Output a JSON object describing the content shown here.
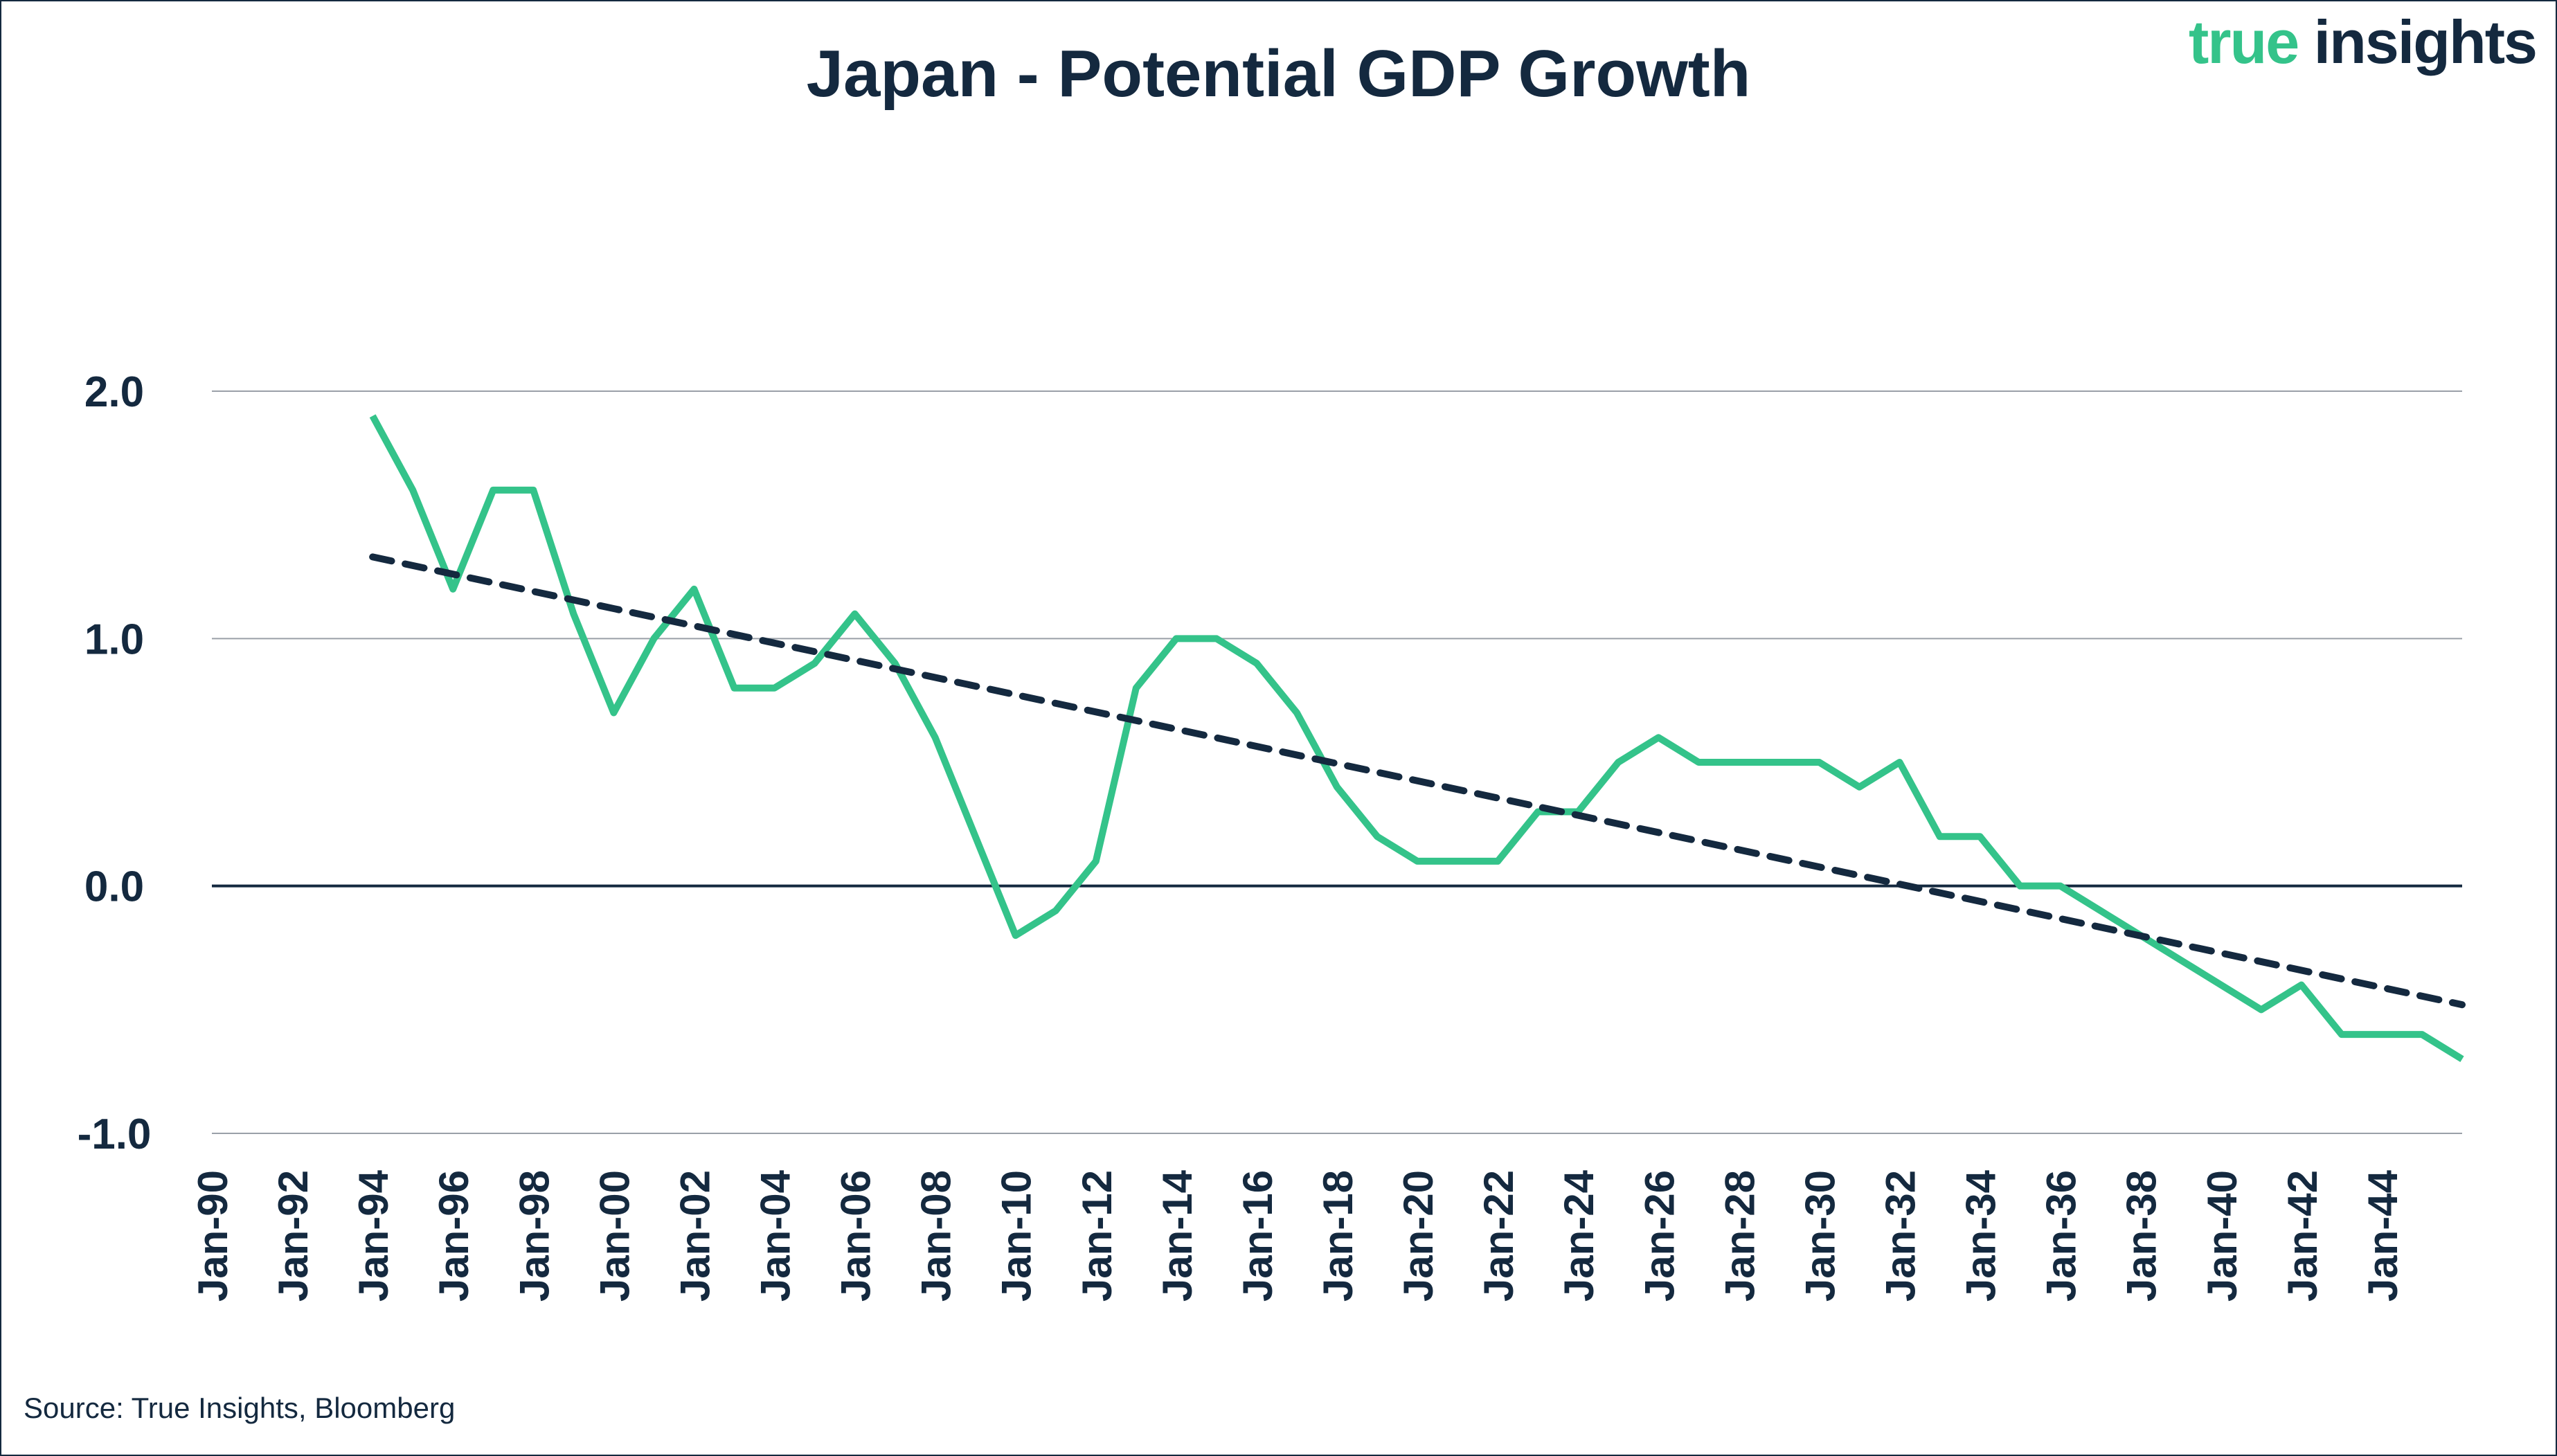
{
  "chart_data": {
    "type": "line",
    "title": "Japan - Potential GDP Growth",
    "xlabel": "",
    "ylabel": "",
    "ylim": [
      -1.0,
      2.0
    ],
    "yticks": [
      "2.0",
      "1.0",
      "0.0",
      "-1.0"
    ],
    "ytick_values": [
      2.0,
      1.0,
      0.0,
      -1.0
    ],
    "grid": true,
    "x_range_years": [
      1990,
      2046
    ],
    "xtick_labels": [
      "Jan-90",
      "Jan-92",
      "Jan-94",
      "Jan-96",
      "Jan-98",
      "Jan-00",
      "Jan-02",
      "Jan-04",
      "Jan-06",
      "Jan-08",
      "Jan-10",
      "Jan-12",
      "Jan-14",
      "Jan-16",
      "Jan-18",
      "Jan-20",
      "Jan-22",
      "Jan-24",
      "Jan-26",
      "Jan-28",
      "Jan-30",
      "Jan-32",
      "Jan-34",
      "Jan-36",
      "Jan-38",
      "Jan-40",
      "Jan-42",
      "Jan-44"
    ],
    "series": [
      {
        "name": "Potential GDP Growth",
        "color": "#34c38a",
        "x": [
          1994,
          1995,
          1996,
          1997,
          1998,
          1999,
          2000,
          2001,
          2002,
          2003,
          2004,
          2005,
          2006,
          2007,
          2008,
          2009,
          2010,
          2011,
          2012,
          2013,
          2014,
          2015,
          2016,
          2017,
          2018,
          2019,
          2020,
          2021,
          2022,
          2023,
          2024,
          2025,
          2026,
          2027,
          2028,
          2029,
          2030,
          2031,
          2032,
          2033,
          2034,
          2035,
          2036,
          2037,
          2038,
          2039,
          2040,
          2041,
          2042,
          2043,
          2044,
          2045,
          2046
        ],
        "values": [
          1.9,
          1.6,
          1.2,
          1.6,
          1.6,
          1.1,
          0.7,
          1.0,
          1.2,
          0.8,
          0.8,
          0.9,
          1.1,
          0.9,
          0.6,
          0.2,
          -0.2,
          -0.1,
          0.1,
          0.8,
          1.0,
          1.0,
          0.9,
          0.7,
          0.4,
          0.2,
          0.1,
          0.1,
          0.1,
          0.3,
          0.3,
          0.5,
          0.6,
          0.5,
          0.5,
          0.5,
          0.5,
          0.4,
          0.5,
          0.2,
          0.2,
          0.0,
          0.0,
          -0.1,
          -0.2,
          -0.3,
          -0.4,
          -0.5,
          -0.4,
          -0.6,
          -0.6,
          -0.6,
          -0.7
        ]
      },
      {
        "name": "Linear trend",
        "color": "#14293f",
        "style": "dashed",
        "x": [
          1994,
          2046
        ],
        "values": [
          1.33,
          -0.48
        ]
      }
    ]
  },
  "logo": {
    "part1": "true",
    "part2": " insights"
  },
  "source": "Source: True Insights, Bloomberg"
}
